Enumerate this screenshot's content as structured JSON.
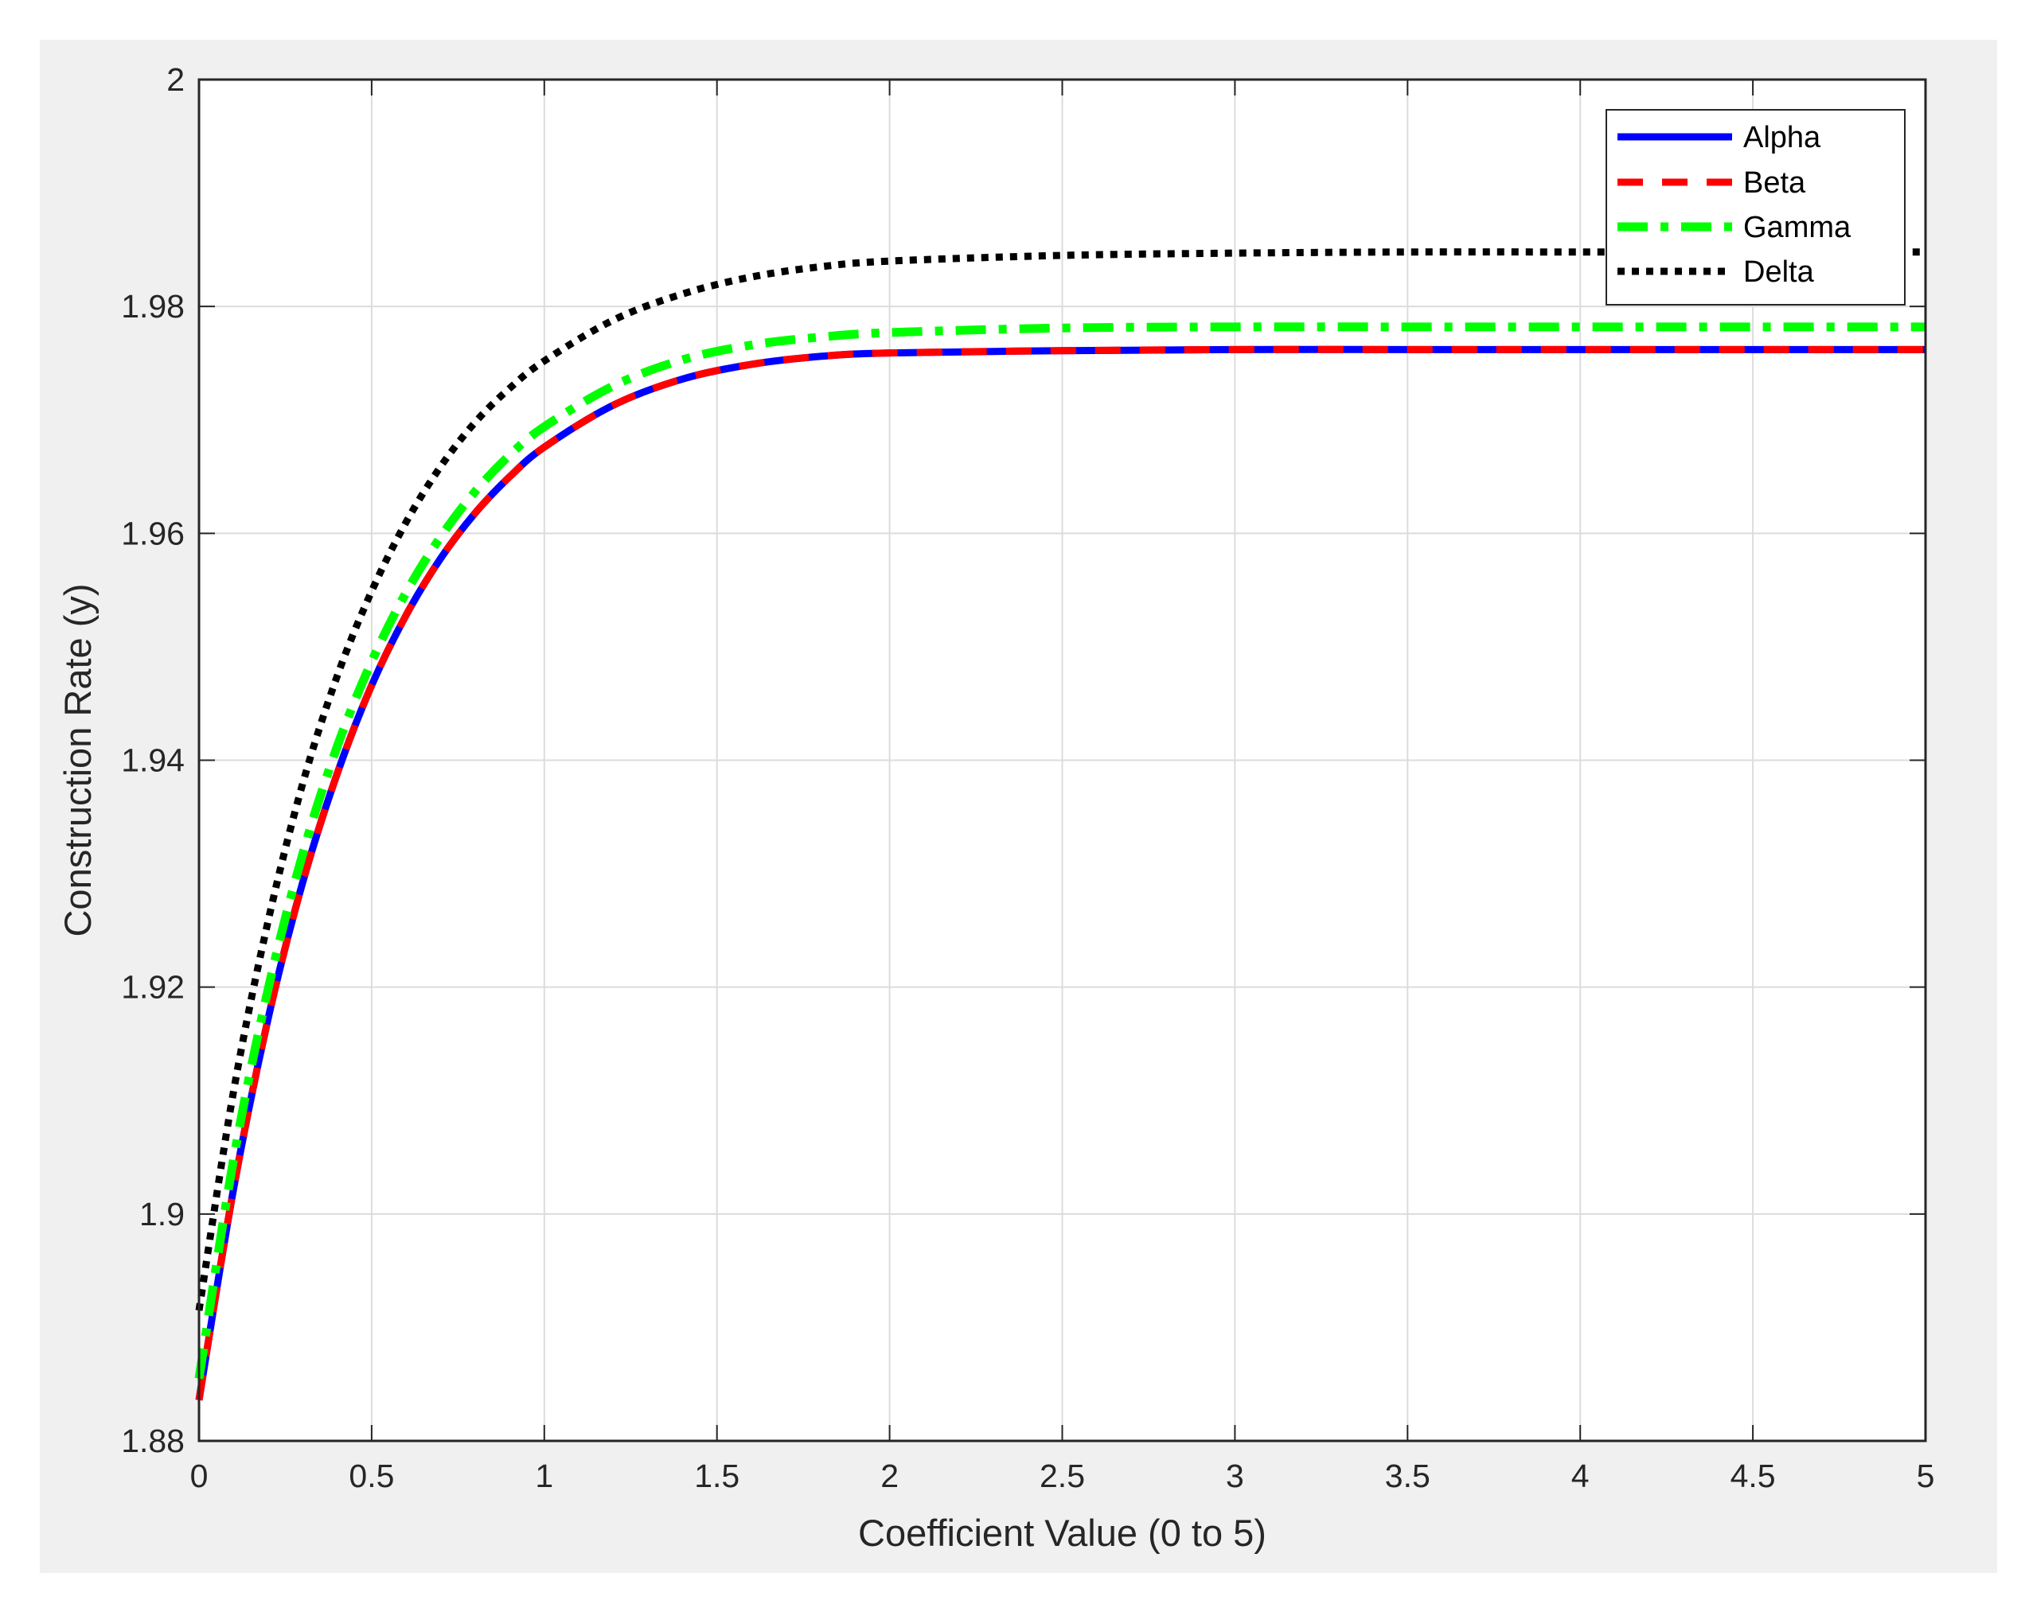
{
  "chart_data": {
    "type": "line",
    "title": "",
    "xlabel": "Coefficient Value (0 to 5)",
    "ylabel": "Construction Rate (y)",
    "xlim": [
      0,
      5
    ],
    "ylim": [
      1.88,
      2
    ],
    "xticks": [
      0,
      0.5,
      1,
      1.5,
      2,
      2.5,
      3,
      3.5,
      4,
      4.5,
      5
    ],
    "xtick_labels": [
      "0",
      "0.5",
      "1",
      "1.5",
      "2",
      "2.5",
      "3",
      "3.5",
      "4",
      "4.5",
      "5"
    ],
    "yticks": [
      1.88,
      1.9,
      1.92,
      1.94,
      1.96,
      1.98,
      2
    ],
    "ytick_labels": [
      "1.88",
      "1.9",
      "1.92",
      "1.94",
      "1.96",
      "1.98",
      "2"
    ],
    "grid": true,
    "legend_position": "top-right",
    "x": [
      0,
      0.1,
      0.2,
      0.3,
      0.4,
      0.5,
      0.6,
      0.7,
      0.8,
      0.9,
      1.0,
      1.2,
      1.4,
      1.6,
      1.8,
      2.0,
      2.5,
      3.0,
      3.5,
      4.0,
      4.5,
      5.0
    ],
    "series": [
      {
        "name": "Alpha",
        "color": "#0000ff",
        "style": "solid",
        "values": [
          1.8836,
          1.9022,
          1.9172,
          1.9292,
          1.9388,
          1.9466,
          1.9528,
          1.9578,
          1.9618,
          1.965,
          1.9676,
          1.9713,
          1.9736,
          1.9749,
          1.9756,
          1.9759,
          1.9761,
          1.9762,
          1.9762,
          1.9762,
          1.9762,
          1.9762
        ]
      },
      {
        "name": "Beta",
        "color": "#ff0000",
        "style": "dashed",
        "values": [
          1.8836,
          1.9022,
          1.9172,
          1.9292,
          1.9388,
          1.9466,
          1.9528,
          1.9578,
          1.9618,
          1.965,
          1.9676,
          1.9713,
          1.9736,
          1.9749,
          1.9756,
          1.9759,
          1.9761,
          1.9762,
          1.9762,
          1.9762,
          1.9762,
          1.9762
        ]
      },
      {
        "name": "Gamma",
        "color": "#00ff00",
        "style": "dashdot",
        "values": [
          1.8855,
          1.9048,
          1.9198,
          1.9317,
          1.9412,
          1.9487,
          1.9548,
          1.9597,
          1.9637,
          1.9669,
          1.9694,
          1.973,
          1.9753,
          1.9766,
          1.9773,
          1.9777,
          1.9781,
          1.9782,
          1.9782,
          1.9782,
          1.9782,
          1.9782
        ]
      },
      {
        "name": "Delta",
        "color": "#000000",
        "style": "dotted",
        "values": [
          1.8915,
          1.9108,
          1.9258,
          1.9379,
          1.9474,
          1.9549,
          1.961,
          1.9659,
          1.9698,
          1.9728,
          1.9752,
          1.9788,
          1.9811,
          1.9826,
          1.9835,
          1.984,
          1.9845,
          1.9847,
          1.9848,
          1.9848,
          1.9848,
          1.9848
        ]
      }
    ]
  }
}
